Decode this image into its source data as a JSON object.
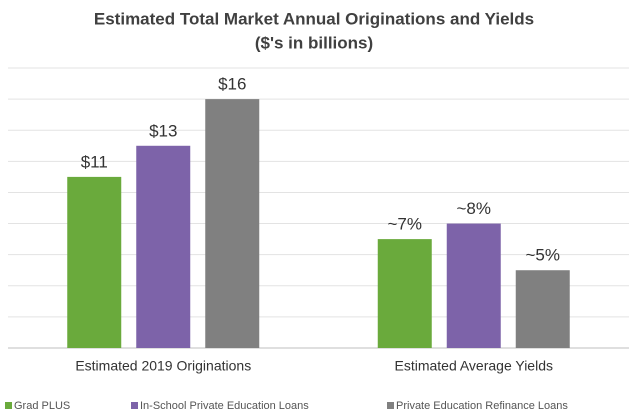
{
  "chart_data": {
    "type": "bar",
    "title": "Estimated Total Market Annual Originations and Yields",
    "subtitle": "($'s in billions)",
    "categories": [
      "Estimated 2019 Originations",
      "Estimated Average Yields"
    ],
    "series": [
      {
        "name": "Grad PLUS",
        "color": "#6aaa3c",
        "values": [
          11,
          7
        ],
        "value_labels": [
          "$11",
          "~7%"
        ]
      },
      {
        "name": "In-School Private Education Loans",
        "color": "#7d63a9",
        "values": [
          13,
          8
        ],
        "value_labels": [
          "$13",
          "~8%"
        ]
      },
      {
        "name": "Private Education Refinance Loans",
        "color": "#808080",
        "values": [
          16,
          5
        ],
        "value_labels": [
          "$16",
          "~5%"
        ]
      }
    ],
    "ylim": [
      0,
      18
    ],
    "yticks": [
      0,
      2,
      4,
      6,
      8,
      10,
      12,
      14,
      16,
      18
    ],
    "grid": true,
    "legend": "bottom"
  }
}
